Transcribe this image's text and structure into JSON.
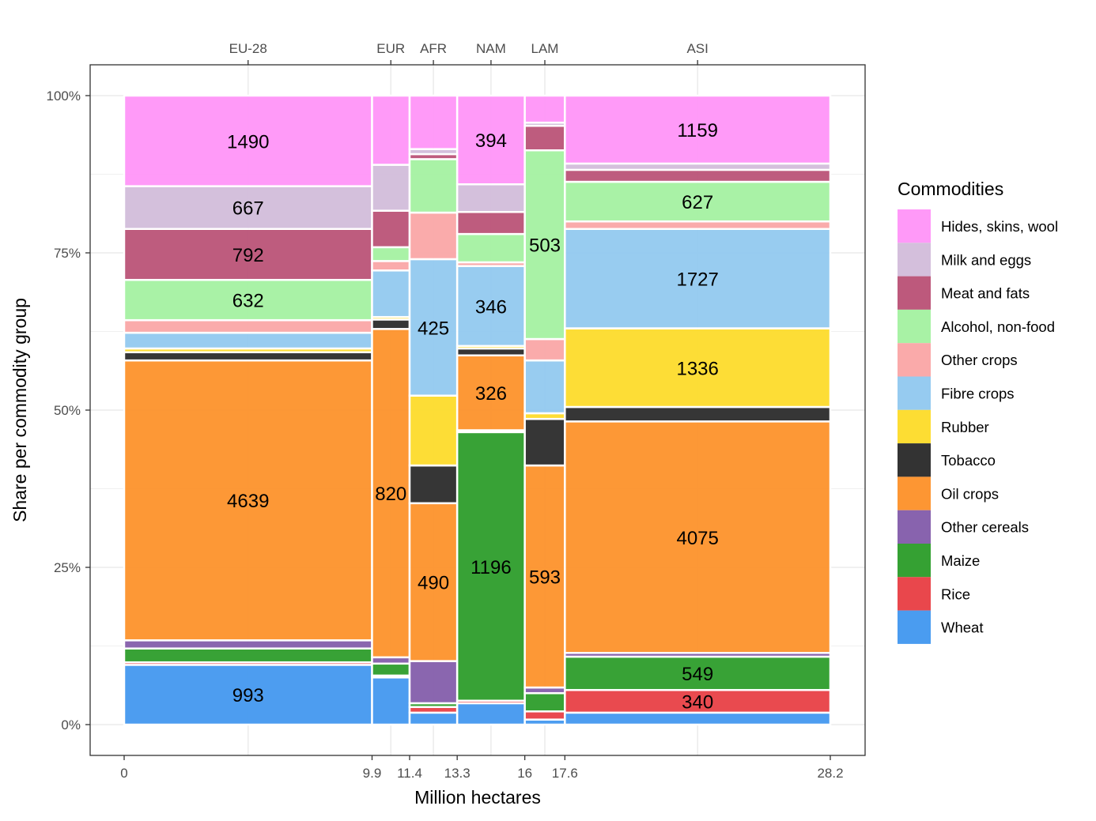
{
  "chart_data": {
    "type": "mosaic",
    "title": "",
    "xlabel": "Million hectares",
    "ylabel": "Share per commodity group",
    "xlim": [
      0,
      28.2
    ],
    "ylim": [
      0,
      1
    ],
    "y_ticks": [
      {
        "value": 0,
        "label": "0%"
      },
      {
        "value": 0.25,
        "label": "25%"
      },
      {
        "value": 0.5,
        "label": "50%"
      },
      {
        "value": 0.75,
        "label": "75%"
      },
      {
        "value": 1,
        "label": "100%"
      }
    ],
    "x_ticks_bottom": [
      {
        "value": 0,
        "label": "0"
      },
      {
        "value": 9.9,
        "label": "9.9"
      },
      {
        "value": 11.4,
        "label": "11.4"
      },
      {
        "value": 13.3,
        "label": "13.3"
      },
      {
        "value": 16,
        "label": "16"
      },
      {
        "value": 17.6,
        "label": "17.6"
      },
      {
        "value": 28.2,
        "label": "28.2"
      }
    ],
    "grid": true,
    "legend": {
      "title": "Commodities",
      "position": "right",
      "entries": [
        {
          "name": "Hides, skins, wool",
          "color": "#ff99f8"
        },
        {
          "name": "Milk and eggs",
          "color": "#d4bfdc"
        },
        {
          "name": "Meat and fats",
          "color": "#bd597c"
        },
        {
          "name": "Alcohol, non-food",
          "color": "#a8f2a5"
        },
        {
          "name": "Other crops",
          "color": "#faaaaa"
        },
        {
          "name": "Fibre crops",
          "color": "#96cbf0"
        },
        {
          "name": "Rubber",
          "color": "#fddd33"
        },
        {
          "name": "Tobacco",
          "color": "#333333"
        },
        {
          "name": "Oil crops",
          "color": "#fd9633"
        },
        {
          "name": "Other cereals",
          "color": "#8863ae"
        },
        {
          "name": "Maize",
          "color": "#35a133"
        },
        {
          "name": "Rice",
          "color": "#e9474c"
        },
        {
          "name": "Wheat",
          "color": "#4a9cf0"
        }
      ]
    },
    "categories_order_bottom_to_top": [
      "Wheat",
      "Rice",
      "Maize",
      "Other cereals",
      "Oil crops",
      "Tobacco",
      "Rubber",
      "Fibre crops",
      "Other crops",
      "Alcohol, non-food",
      "Meat and fats",
      "Milk and eggs",
      "Hides, skins, wool"
    ],
    "regions": [
      {
        "name": "EU-28",
        "x_start": 0,
        "x_end": 9.9,
        "cumulative_top_pct": [
          9.5,
          9.9,
          12.1,
          13.4,
          57.9,
          59.2,
          59.8,
          62.3,
          64.3,
          70.7,
          78.8,
          85.6,
          100
        ],
        "labels": {
          "Wheat": "993",
          "Oil crops": "4639",
          "Alcohol, non-food": "632",
          "Meat and fats": "792",
          "Milk and eggs": "667",
          "Hides, skins, wool": "1490"
        }
      },
      {
        "name": "EUR",
        "x_start": 9.9,
        "x_end": 11.4,
        "cumulative_top_pct": [
          7.5,
          7.8,
          9.7,
          10.7,
          62.9,
          64.4,
          64.8,
          72.2,
          73.7,
          75.9,
          81.7,
          89.0,
          100
        ],
        "labels": {
          "Oil crops": "820"
        }
      },
      {
        "name": "AFR",
        "x_start": 11.4,
        "x_end": 13.3,
        "cumulative_top_pct": [
          1.9,
          2.8,
          3.4,
          10.1,
          35.2,
          41.2,
          52.3,
          74.0,
          81.4,
          89.9,
          90.7,
          91.5,
          100
        ],
        "labels": {
          "Oil crops": "490",
          "Fibre crops": "425"
        }
      },
      {
        "name": "NAM",
        "x_start": 13.3,
        "x_end": 16,
        "cumulative_top_pct": [
          3.4,
          3.8,
          46.5,
          46.8,
          58.7,
          59.8,
          60.2,
          72.9,
          73.5,
          78.0,
          81.5,
          85.9,
          100
        ],
        "labels": {
          "Maize": "1196",
          "Oil crops": "326",
          "Fibre crops": "346",
          "Hides, skins, wool": "394"
        }
      },
      {
        "name": "LAM",
        "x_start": 16,
        "x_end": 17.6,
        "cumulative_top_pct": [
          0.8,
          2.1,
          5.0,
          5.9,
          41.2,
          48.6,
          49.5,
          57.9,
          61.3,
          91.3,
          95.2,
          95.7,
          100
        ],
        "labels": {
          "Oil crops": "593",
          "Alcohol, non-food": "503"
        }
      },
      {
        "name": "ASI",
        "x_start": 17.6,
        "x_end": 28.2,
        "cumulative_top_pct": [
          1.9,
          5.5,
          10.8,
          11.4,
          48.2,
          50.5,
          63.0,
          78.8,
          80.0,
          86.3,
          88.2,
          89.2,
          100
        ],
        "labels": {
          "Rice": "340",
          "Maize": "549",
          "Oil crops": "4075",
          "Rubber": "1336",
          "Fibre crops": "1727",
          "Alcohol, non-food": "627",
          "Hides, skins, wool": "1159"
        }
      }
    ]
  }
}
